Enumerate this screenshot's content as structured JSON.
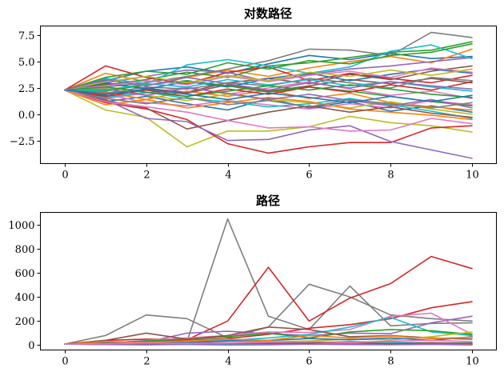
{
  "chart_data": [
    {
      "type": "line",
      "title": "对数路径",
      "xlabel": "",
      "ylabel": "",
      "xlim": [
        -0.6,
        10.6
      ],
      "ylim": [
        -4.7,
        8.4
      ],
      "xticks": [
        0,
        2,
        4,
        6,
        8,
        10
      ],
      "yticks": [
        -2.5,
        0.0,
        2.5,
        5.0,
        7.5
      ],
      "grid": false,
      "x": [
        0,
        1,
        2,
        3,
        4,
        5,
        6,
        7,
        8,
        9,
        10
      ],
      "series": [
        {
          "color": "#1f77b4",
          "values": [
            2.3,
            3.2,
            4.1,
            4.5,
            3.9,
            4.8,
            5.6,
            5.2,
            5.8,
            5.3,
            5.5
          ]
        },
        {
          "color": "#ff7f0e",
          "values": [
            2.3,
            3.9,
            3.1,
            3.5,
            4.2,
            3.6,
            4.4,
            5.0,
            5.5,
            4.9,
            6.2
          ]
        },
        {
          "color": "#2ca02c",
          "values": [
            2.3,
            2.8,
            3.3,
            4.0,
            3.5,
            4.6,
            4.9,
            5.4,
            5.9,
            6.1,
            6.9
          ]
        },
        {
          "color": "#d62728",
          "values": [
            2.3,
            4.6,
            3.5,
            2.9,
            4.0,
            4.5,
            3.2,
            3.9,
            3.4,
            3.0,
            3.7
          ]
        },
        {
          "color": "#9467bd",
          "values": [
            2.3,
            3.0,
            3.6,
            4.2,
            4.0,
            3.1,
            3.8,
            4.3,
            4.6,
            5.0,
            5.4
          ]
        },
        {
          "color": "#8c564b",
          "values": [
            2.3,
            1.8,
            2.4,
            2.1,
            3.0,
            3.4,
            2.9,
            3.8,
            3.3,
            4.1,
            4.6
          ]
        },
        {
          "color": "#e377c2",
          "values": [
            2.3,
            1.5,
            2.0,
            2.6,
            1.9,
            2.5,
            3.1,
            2.4,
            1.8,
            2.2,
            1.5
          ]
        },
        {
          "color": "#7f7f7f",
          "values": [
            2.3,
            2.6,
            3.0,
            3.6,
            4.3,
            5.1,
            6.2,
            6.1,
            5.6,
            7.8,
            7.3
          ]
        },
        {
          "color": "#bcbd22",
          "values": [
            2.3,
            0.4,
            -0.3,
            -3.1,
            -1.6,
            -1.6,
            -1.2,
            -0.2,
            -0.8,
            -1.1,
            -1.7
          ]
        },
        {
          "color": "#17becf",
          "values": [
            2.3,
            3.4,
            2.9,
            4.7,
            5.2,
            4.6,
            3.9,
            4.5,
            6.0,
            6.6,
            5.3
          ]
        },
        {
          "color": "#1f77b4",
          "values": [
            2.3,
            1.2,
            1.7,
            1.0,
            0.4,
            1.5,
            0.6,
            1.2,
            0.3,
            0.8,
            0.2
          ]
        },
        {
          "color": "#ff7f0e",
          "values": [
            2.3,
            2.1,
            1.4,
            2.2,
            1.7,
            2.3,
            1.5,
            2.0,
            1.1,
            0.7,
            0.4
          ]
        },
        {
          "color": "#2ca02c",
          "values": [
            2.3,
            3.5,
            4.1,
            3.8,
            4.9,
            4.3,
            5.1,
            4.8,
            5.6,
            5.9,
            6.7
          ]
        },
        {
          "color": "#d62728",
          "values": [
            2.3,
            1.1,
            0.5,
            -0.5,
            -2.8,
            -3.7,
            -3.1,
            -2.7,
            -2.7,
            -1.3,
            -1.1
          ]
        },
        {
          "color": "#9467bd",
          "values": [
            2.3,
            1.4,
            -0.4,
            -0.7,
            -2.5,
            -2.4,
            -1.5,
            -1.1,
            -2.6,
            -3.4,
            -4.2
          ]
        },
        {
          "color": "#8c564b",
          "values": [
            2.3,
            2.9,
            2.5,
            2.0,
            2.8,
            2.2,
            2.7,
            3.3,
            2.9,
            3.4,
            3.0
          ]
        },
        {
          "color": "#e377c2",
          "values": [
            2.3,
            1.9,
            1.1,
            0.8,
            1.3,
            0.9,
            0.5,
            1.0,
            0.6,
            1.3,
            0.9
          ]
        },
        {
          "color": "#7f7f7f",
          "values": [
            2.3,
            2.0,
            2.6,
            2.4,
            3.0,
            2.7,
            3.4,
            3.0,
            2.5,
            3.5,
            3.2
          ]
        },
        {
          "color": "#bcbd22",
          "values": [
            2.3,
            2.5,
            1.8,
            1.3,
            1.9,
            1.4,
            1.1,
            0.6,
            1.2,
            0.5,
            0.0
          ]
        },
        {
          "color": "#17becf",
          "values": [
            2.3,
            1.6,
            2.1,
            1.5,
            1.2,
            0.7,
            1.0,
            1.5,
            0.9,
            0.3,
            -0.4
          ]
        },
        {
          "color": "#1f77b4",
          "values": [
            2.3,
            3.0,
            2.4,
            3.1,
            2.6,
            3.4,
            3.9,
            3.2,
            3.8,
            4.3,
            3.9
          ]
        },
        {
          "color": "#ff7f0e",
          "values": [
            2.3,
            0.9,
            1.4,
            0.6,
            1.1,
            1.6,
            1.2,
            0.5,
            0.2,
            -0.1,
            -0.5
          ]
        },
        {
          "color": "#2ca02c",
          "values": [
            2.3,
            2.2,
            2.8,
            3.2,
            2.7,
            2.1,
            2.6,
            2.2,
            1.7,
            1.2,
            0.8
          ]
        },
        {
          "color": "#d62728",
          "values": [
            2.3,
            1.7,
            2.3,
            1.7,
            2.4,
            1.9,
            2.6,
            2.1,
            2.8,
            2.3,
            3.1
          ]
        },
        {
          "color": "#9467bd",
          "values": [
            2.3,
            2.4,
            1.8,
            2.5,
            2.0,
            1.4,
            1.9,
            1.3,
            0.8,
            1.4,
            0.6
          ]
        },
        {
          "color": "#8c564b",
          "values": [
            2.3,
            1.3,
            0.6,
            -1.4,
            -0.6,
            0.2,
            0.8,
            0.2,
            0.7,
            0.1,
            -0.3
          ]
        },
        {
          "color": "#e377c2",
          "values": [
            2.3,
            2.7,
            3.2,
            2.8,
            3.6,
            3.1,
            3.7,
            4.1,
            3.5,
            4.4,
            4.0
          ]
        },
        {
          "color": "#7f7f7f",
          "values": [
            2.3,
            1.5,
            1.0,
            1.6,
            0.9,
            1.3,
            0.7,
            1.4,
            1.0,
            0.6,
            1.1
          ]
        },
        {
          "color": "#bcbd22",
          "values": [
            2.3,
            3.1,
            3.6,
            3.0,
            3.7,
            3.2,
            4.0,
            3.6,
            4.2,
            3.7,
            4.3
          ]
        },
        {
          "color": "#17becf",
          "values": [
            2.3,
            2.3,
            2.9,
            2.6,
            3.3,
            2.8,
            3.3,
            2.7,
            3.1,
            2.6,
            2.2
          ]
        },
        {
          "color": "#e377c2",
          "values": [
            2.3,
            1.2,
            0.7,
            0.2,
            -0.6,
            -1.3,
            -1.2,
            -1.6,
            -1.5,
            -0.4,
            -0.9
          ]
        },
        {
          "color": "#2ca02c",
          "values": [
            2.3,
            2.6,
            2.1,
            1.7,
            2.2,
            2.7,
            2.3,
            2.8,
            2.4,
            1.9,
            1.6
          ]
        },
        {
          "color": "#1f77b4",
          "values": [
            2.3,
            1.9,
            2.4,
            1.9,
            1.4,
            2.0,
            1.6,
            1.1,
            1.7,
            1.2,
            1.8
          ]
        },
        {
          "color": "#9467bd",
          "values": [
            2.3,
            3.3,
            2.7,
            3.5,
            2.9,
            2.3,
            3.0,
            2.5,
            3.1,
            2.7,
            2.4
          ]
        }
      ]
    },
    {
      "type": "line",
      "title": "路径",
      "xlabel": "",
      "ylabel": "",
      "xlim": [
        -0.6,
        10.6
      ],
      "ylim": [
        -40,
        1100
      ],
      "xticks": [
        0,
        2,
        4,
        6,
        8,
        10
      ],
      "yticks": [
        0,
        200,
        400,
        600,
        800,
        1000
      ],
      "grid": false,
      "x": [
        0,
        1,
        2,
        3,
        4,
        5,
        6,
        7,
        8,
        9,
        10
      ],
      "series": [
        {
          "color": "#7f7f7f",
          "values": [
            10,
            15,
            20,
            30,
            1045,
            240,
            130,
            490,
            160,
            180,
            185
          ]
        },
        {
          "color": "#7f7f7f",
          "values": [
            10,
            80,
            250,
            220,
            60,
            150,
            505,
            400,
            250,
            220,
            200
          ]
        },
        {
          "color": "#d62728",
          "values": [
            10,
            40,
            50,
            45,
            200,
            645,
            200,
            390,
            510,
            735,
            635
          ]
        },
        {
          "color": "#d62728",
          "values": [
            10,
            20,
            30,
            40,
            55,
            90,
            140,
            170,
            220,
            310,
            360
          ]
        },
        {
          "color": "#9467bd",
          "values": [
            10,
            30,
            25,
            100,
            115,
            95,
            80,
            100,
            95,
            185,
            240
          ]
        },
        {
          "color": "#e377c2",
          "values": [
            10,
            15,
            40,
            60,
            80,
            110,
            105,
            130,
            240,
            265,
            90
          ]
        },
        {
          "color": "#17becf",
          "values": [
            10,
            25,
            20,
            30,
            40,
            60,
            90,
            150,
            230,
            110,
            80
          ]
        },
        {
          "color": "#2ca02c",
          "values": [
            10,
            20,
            35,
            50,
            70,
            100,
            60,
            110,
            130,
            120,
            90
          ]
        },
        {
          "color": "#8c564b",
          "values": [
            10,
            40,
            100,
            50,
            80,
            150,
            130,
            70,
            80,
            60,
            50
          ]
        },
        {
          "color": "#bcbd22",
          "values": [
            10,
            12,
            8,
            15,
            20,
            30,
            35,
            50,
            45,
            70,
            110
          ]
        },
        {
          "color": "#1f77b4",
          "values": [
            10,
            18,
            25,
            20,
            35,
            40,
            55,
            45,
            60,
            40,
            70
          ]
        },
        {
          "color": "#ff7f0e",
          "values": [
            10,
            30,
            22,
            35,
            50,
            40,
            80,
            60,
            75,
            55,
            65
          ]
        },
        {
          "color": "#1f77b4",
          "values": [
            10,
            5,
            10,
            8,
            12,
            6,
            15,
            10,
            8,
            12,
            5
          ]
        },
        {
          "color": "#ff7f0e",
          "values": [
            10,
            8,
            12,
            15,
            10,
            18,
            12,
            20,
            15,
            10,
            8
          ]
        },
        {
          "color": "#17becf",
          "values": [
            10,
            6,
            4,
            8,
            5,
            12,
            20,
            30,
            25,
            18,
            20
          ]
        },
        {
          "color": "#8c564b",
          "values": [
            10,
            15,
            12,
            10,
            20,
            15,
            18,
            25,
            12,
            20,
            15
          ]
        },
        {
          "color": "#9467bd",
          "values": [
            10,
            5,
            3,
            6,
            2,
            4,
            8,
            5,
            3,
            7,
            2
          ]
        },
        {
          "color": "#e377c2",
          "values": [
            10,
            12,
            18,
            14,
            20,
            25,
            30,
            22,
            35,
            40,
            30
          ]
        }
      ]
    }
  ]
}
